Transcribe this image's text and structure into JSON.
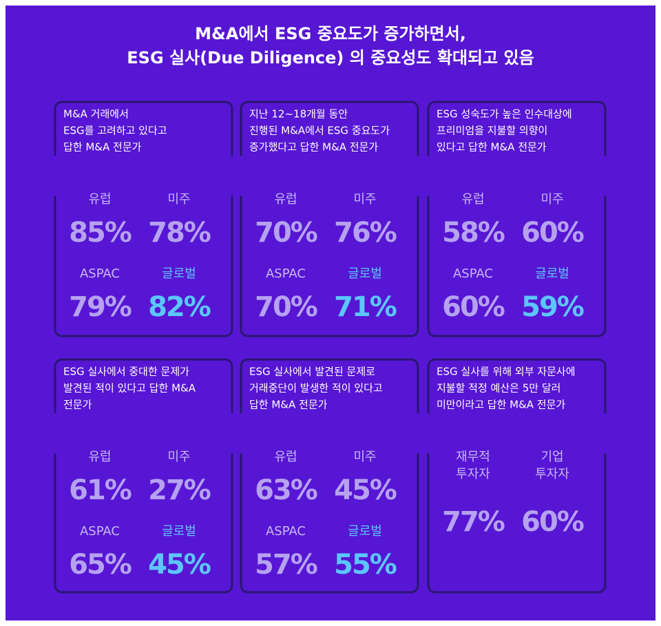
{
  "title": [
    "M&A에서 ESG 중요도가 증가하면서,",
    "ESG 실사(Due Diligence)  의 중요성도 확대되고 있음"
  ],
  "panels": [
    {
      "heading": [
        "M&A 거래에서",
        "ESG를 고려하고 있다고",
        "답한 M&A 전문가"
      ],
      "stats": [
        {
          "label": "유럽",
          "value": "85%"
        },
        {
          "label": "미주",
          "value": "78%"
        },
        {
          "label": "ASPAC",
          "value": "79%"
        },
        {
          "label": "글로벌",
          "value": "82%"
        }
      ]
    },
    {
      "heading": [
        "지난 12~18개월 동안",
        "진행된 M&A에서 ESG 중요도가",
        "증가했다고 답한 M&A 전문가"
      ],
      "stats": [
        {
          "label": "유럽",
          "value": "70%"
        },
        {
          "label": "미주",
          "value": "76%"
        },
        {
          "label": "ASPAC",
          "value": "70%"
        },
        {
          "label": "글로벌",
          "value": "71%"
        }
      ]
    },
    {
      "heading": [
        "ESG 성숙도가 높은 인수대상에",
        "프리미엄을 지불할 의향이",
        "있다고 답한 M&A 전문가"
      ],
      "stats": [
        {
          "label": "유럽",
          "value": "58%"
        },
        {
          "label": "미주",
          "value": "60%"
        },
        {
          "label": "ASPAC",
          "value": "60%"
        },
        {
          "label": "글로벌",
          "value": "59%"
        }
      ]
    },
    {
      "heading": [
        "ESG 실사에서 중대한 문제가",
        "발견된 적이 있다고 답한 M&A",
        "전문가"
      ],
      "stats": [
        {
          "label": "유럽",
          "value": "61%"
        },
        {
          "label": "미주",
          "value": "27%"
        },
        {
          "label": "ASPAC",
          "value": "65%"
        },
        {
          "label": "글로벌",
          "value": "45%"
        }
      ]
    },
    {
      "heading": [
        "ESG 실사에서 발견된 문제로",
        "거래중단이 발생한 적이 있다고",
        "답한 M&A 전문가"
      ],
      "stats": [
        {
          "label": "유럽",
          "value": "63%"
        },
        {
          "label": "미주",
          "value": "45%"
        },
        {
          "label": "ASPAC",
          "value": "57%"
        },
        {
          "label": "글로벌",
          "value": "55%"
        }
      ]
    },
    {
      "heading": [
        "ESG 실사를 위해 외부 자문사에",
        "지불할 적정 예산은 5만 달러",
        "미만이라고 답한 M&A 전문가"
      ],
      "stats": [
        {
          "label": [
            "재무적",
            "투자자"
          ],
          "value": "77%"
        },
        {
          "label": [
            "기업",
            "투자자"
          ],
          "value": "60%"
        }
      ]
    }
  ]
}
